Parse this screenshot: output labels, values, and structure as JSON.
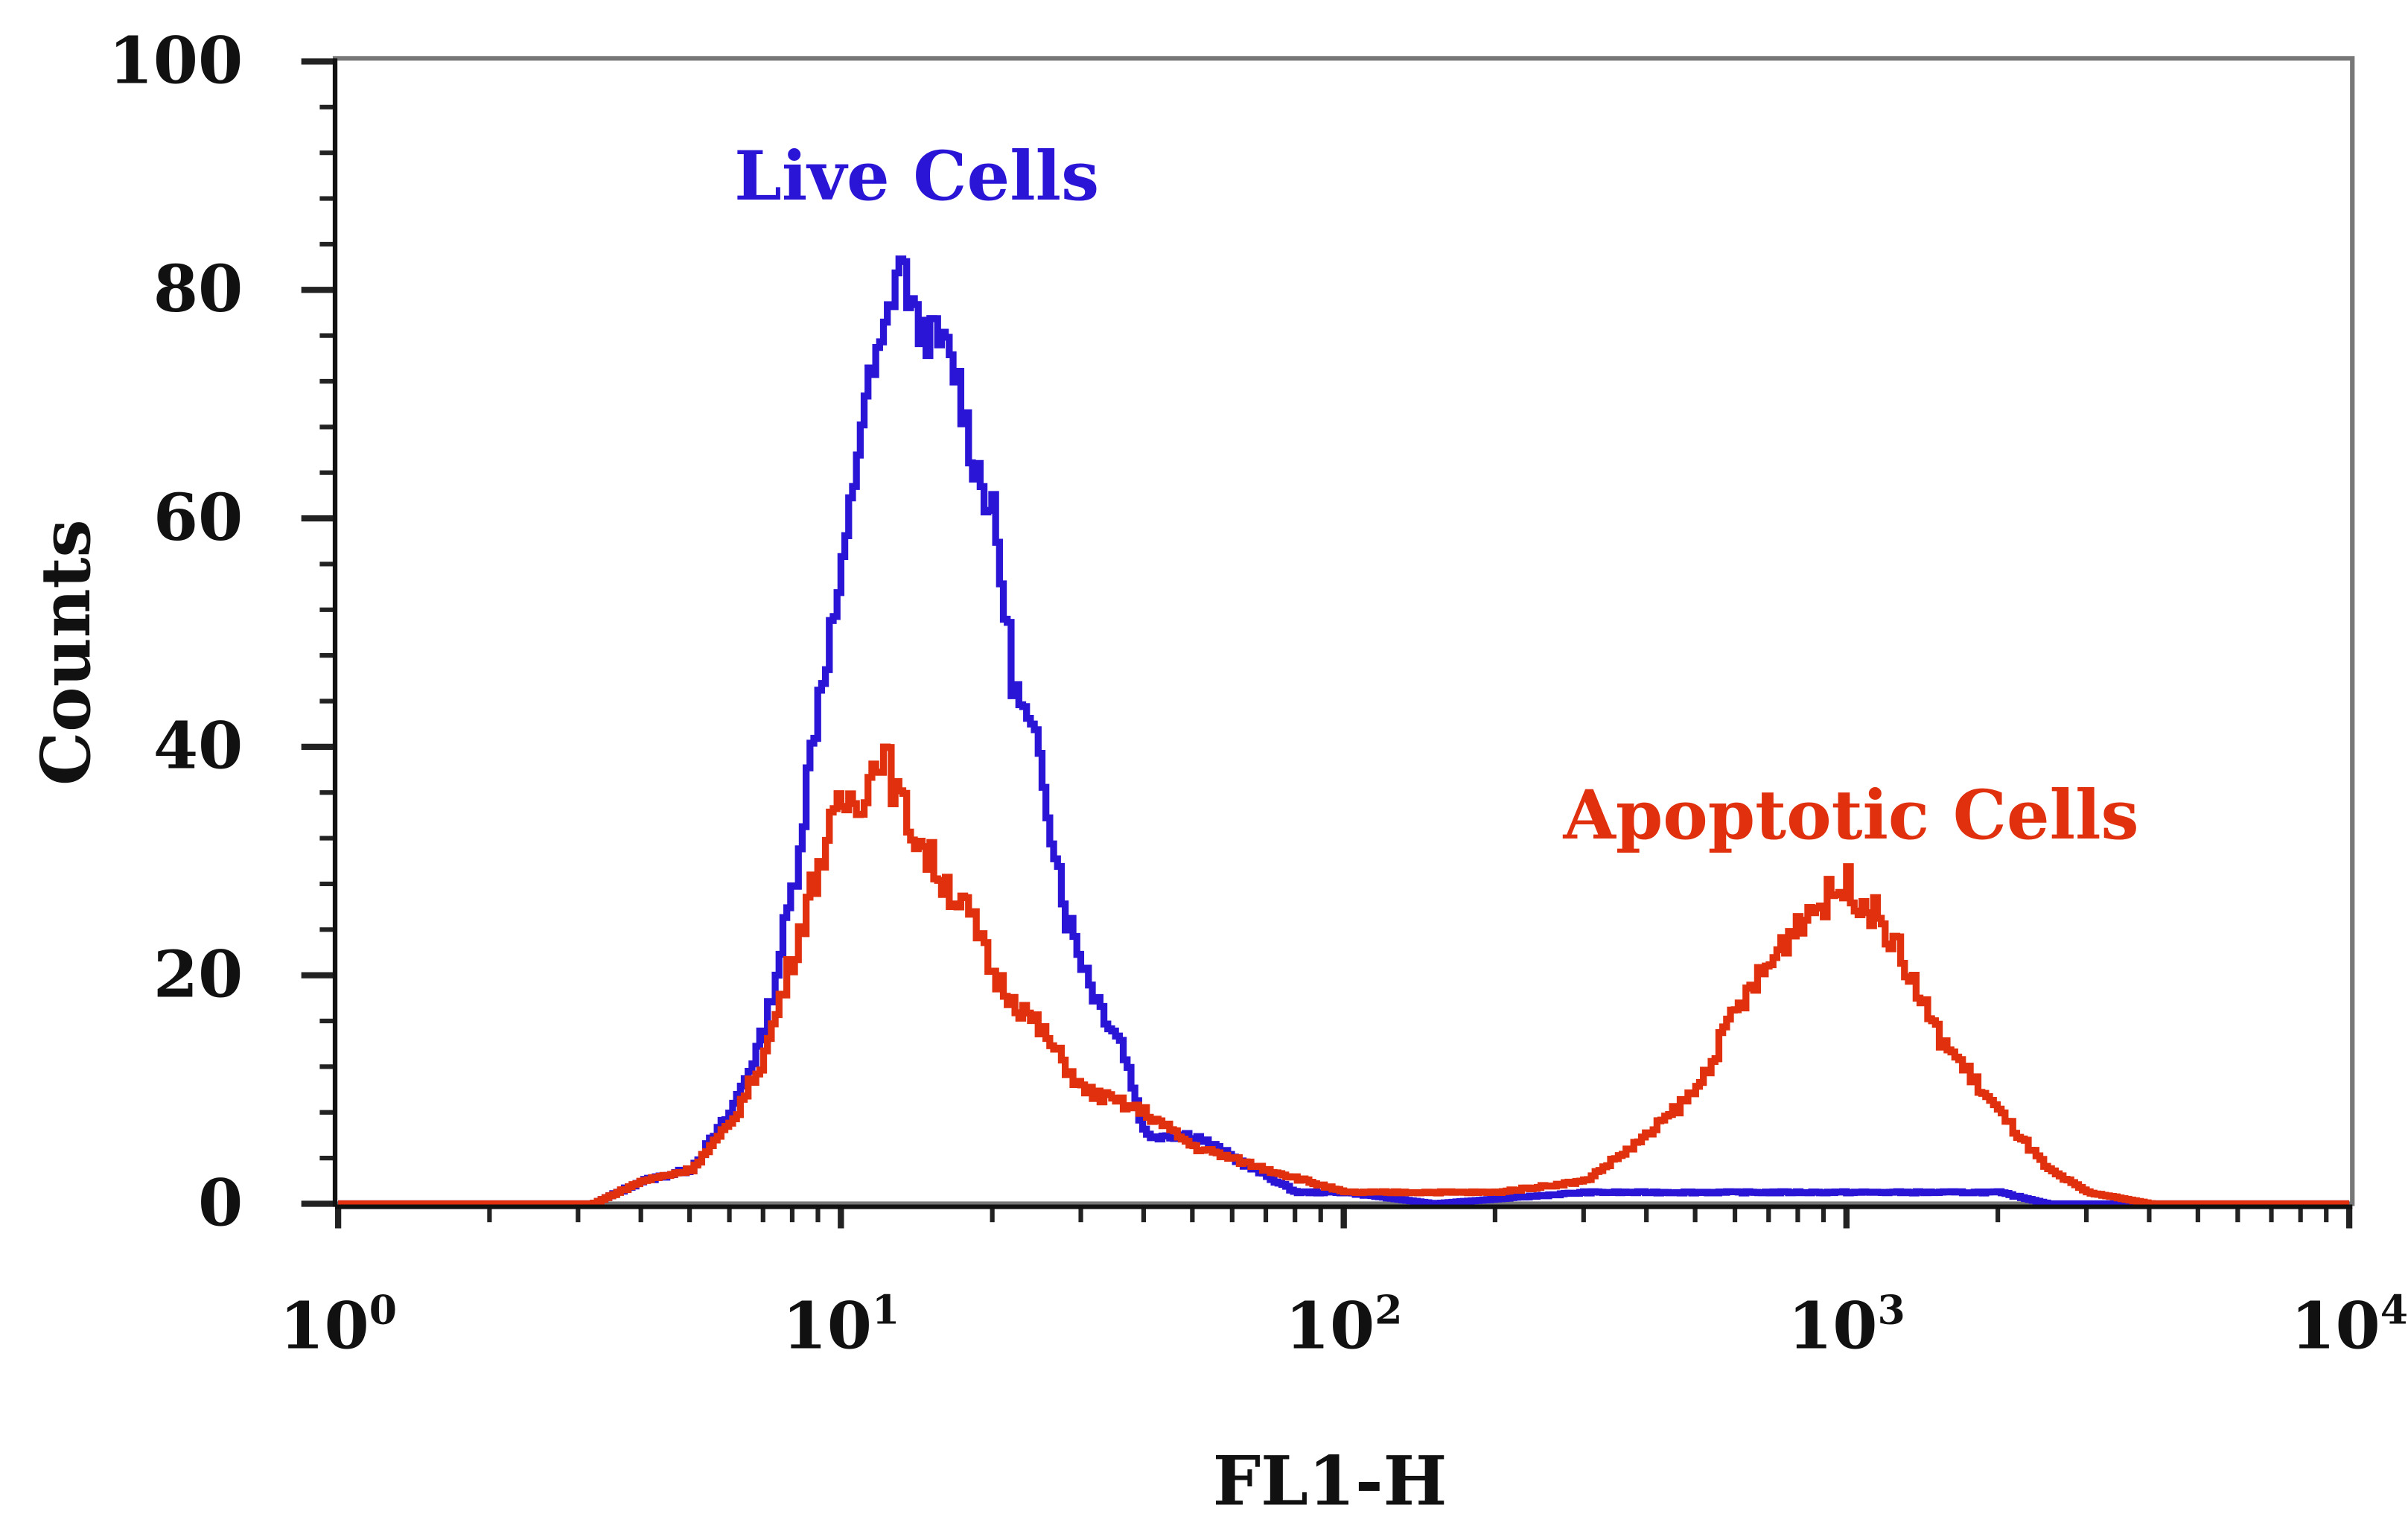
{
  "chart_data": {
    "type": "line",
    "title": "",
    "xlabel": "FL1-H",
    "ylabel": "Counts",
    "xscale": "log",
    "xlim": [
      1,
      10000
    ],
    "ylim": [
      0,
      100
    ],
    "x_ticks": [
      {
        "base": "10",
        "exp": "0",
        "value": 1
      },
      {
        "base": "10",
        "exp": "1",
        "value": 10
      },
      {
        "base": "10",
        "exp": "2",
        "value": 100
      },
      {
        "base": "10",
        "exp": "3",
        "value": 1000
      },
      {
        "base": "10",
        "exp": "4",
        "value": 10000
      }
    ],
    "y_ticks": [
      "0",
      "20",
      "40",
      "60",
      "80",
      "100"
    ],
    "grid": false,
    "annotations": [
      {
        "text": "Live Cells",
        "series": "Live Cells"
      },
      {
        "text": "Apoptotic Cells",
        "series": "Apoptotic Cells"
      }
    ],
    "series": [
      {
        "name": "Live Cells",
        "color": "#2a14d6",
        "x": [
          1,
          3.2,
          4,
          5,
          6,
          7,
          8,
          9,
          10,
          11,
          12,
          13,
          14,
          15,
          16,
          17,
          18,
          20,
          22,
          25,
          28,
          32,
          36,
          40,
          50,
          60,
          80,
          100,
          150,
          300,
          500,
          1000,
          2000,
          2500,
          10000
        ],
        "y": [
          0,
          0,
          2,
          3,
          8,
          15,
          28,
          45,
          55,
          70,
          75,
          83,
          77,
          76,
          75,
          72,
          66,
          60,
          45,
          38,
          25,
          18,
          14,
          6,
          6,
          4,
          1,
          1,
          0,
          1,
          1,
          1,
          1,
          0,
          0
        ]
      },
      {
        "name": "Apoptotic Cells",
        "color": "#e0300e",
        "x": [
          1,
          3.2,
          4,
          5,
          6,
          7,
          8,
          9,
          10,
          11,
          12,
          13,
          15,
          18,
          20,
          25,
          30,
          40,
          50,
          70,
          100,
          200,
          300,
          400,
          500,
          600,
          700,
          800,
          1000,
          1200,
          1500,
          2000,
          2500,
          3000,
          4000,
          10000
        ],
        "y": [
          0,
          0,
          2,
          3,
          7,
          13,
          22,
          30,
          35,
          36,
          40,
          35,
          30,
          25,
          20,
          15,
          10,
          8,
          5,
          3,
          1,
          1,
          2,
          6,
          10,
          17,
          21,
          25,
          28,
          24,
          15,
          8,
          3,
          1,
          0,
          0
        ]
      }
    ]
  }
}
